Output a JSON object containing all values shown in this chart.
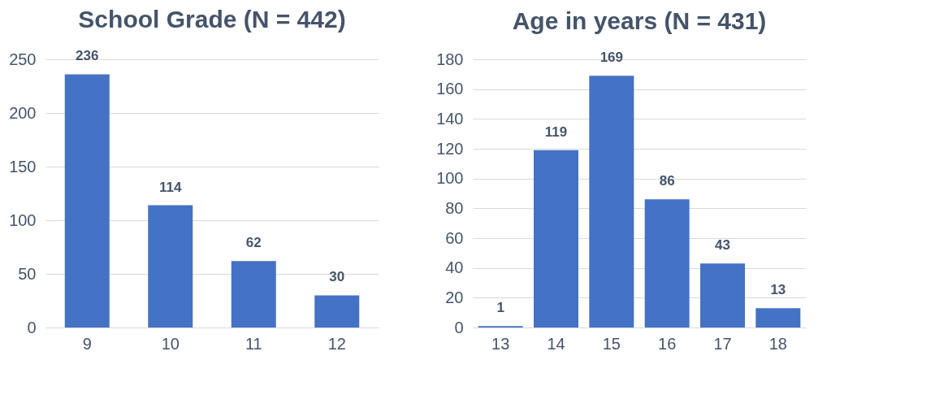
{
  "chart_data": [
    {
      "type": "bar",
      "title": "School Grade (N = 442)",
      "categories": [
        "9",
        "10",
        "11",
        "12"
      ],
      "values": [
        236,
        114,
        62,
        30
      ],
      "color": "#4472c4",
      "ylim": [
        0,
        250
      ],
      "yticks": [
        0,
        50,
        100,
        150,
        200,
        250
      ],
      "grid": "y",
      "data_labels": true
    },
    {
      "type": "bar",
      "title": "Age in years (N = 431)",
      "categories": [
        "13",
        "14",
        "15",
        "16",
        "17",
        "18"
      ],
      "values": [
        1,
        119,
        169,
        86,
        43,
        13
      ],
      "color": "#4472c4",
      "ylim": [
        0,
        180
      ],
      "yticks": [
        0,
        20,
        40,
        60,
        80,
        100,
        120,
        140,
        160,
        180
      ],
      "grid": "y",
      "data_labels": true
    }
  ]
}
